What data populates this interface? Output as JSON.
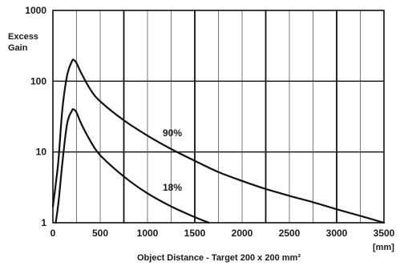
{
  "chart_data": {
    "type": "line",
    "title": "",
    "ylabel_lines": [
      "Excess",
      "Gain"
    ],
    "xlabel": "Object Distance - Target  200 x 200 mm²",
    "x_unit": "[mm]",
    "x_ticks": [
      "0",
      "500",
      "1000",
      "1500",
      "2000",
      "2500",
      "3000",
      "3500"
    ],
    "y_ticks": [
      "1",
      "10",
      "100",
      "1000"
    ],
    "xlim": [
      0,
      3500
    ],
    "ylim": [
      1,
      1000
    ],
    "y_scale": "log",
    "grid": true,
    "x_minor_step": 250,
    "x_major_lines": [
      750,
      1500,
      2250,
      3000
    ],
    "series": [
      {
        "name": "90%",
        "x": [
          0,
          30,
          60,
          100,
          150,
          200,
          220,
          250,
          300,
          400,
          500,
          750,
          1000,
          1250,
          1500,
          1750,
          2000,
          2250,
          2500,
          2750,
          3000,
          3250,
          3500
        ],
        "y": [
          1.7,
          3.5,
          8,
          40,
          120,
          190,
          200,
          180,
          130,
          75,
          52,
          28,
          17,
          11,
          7.5,
          5.2,
          3.9,
          3.0,
          2.4,
          1.95,
          1.55,
          1.25,
          1.0
        ]
      },
      {
        "name": "18%",
        "x": [
          30,
          60,
          100,
          150,
          200,
          220,
          250,
          300,
          400,
          500,
          750,
          1000,
          1250,
          1500,
          1650
        ],
        "y": [
          1.0,
          2.0,
          7,
          25,
          38,
          40,
          36,
          25,
          14,
          9,
          4.5,
          2.6,
          1.7,
          1.2,
          1.0
        ]
      }
    ]
  }
}
